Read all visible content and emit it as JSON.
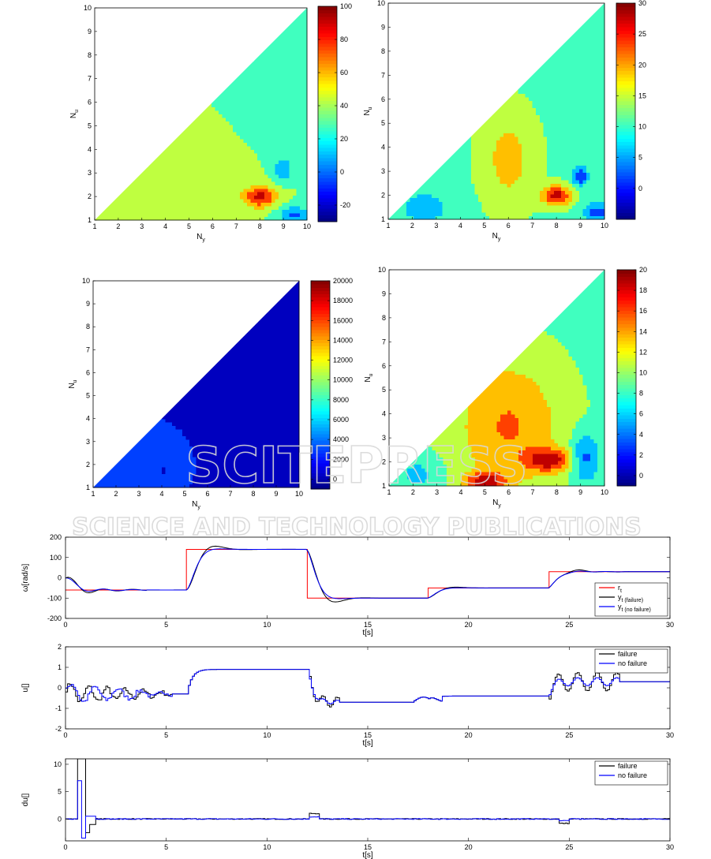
{
  "watermark": {
    "line1": "SCITEPRESS",
    "line2": "SCIENCE AND TECHNOLOGY PUBLICATIONS"
  },
  "chart_data": [
    {
      "type": "heatmap",
      "xlabel": "N_y",
      "ylabel": "N_u",
      "xlim": [
        1,
        10
      ],
      "ylim": [
        1,
        10
      ],
      "xticks": [
        1,
        2,
        3,
        4,
        5,
        6,
        7,
        8,
        9,
        10
      ],
      "yticks": [
        1,
        2,
        3,
        4,
        5,
        6,
        7,
        8,
        9,
        10
      ],
      "colorbar": {
        "min": -30,
        "max": 100,
        "ticks": [
          -20,
          0,
          20,
          40,
          60,
          80,
          100
        ]
      },
      "region": "Nu<=Ny",
      "base_value": 35,
      "blobs": [
        {
          "x": 4.5,
          "y": 3.5,
          "sx": 2.4,
          "sy": 2.0,
          "a": 12
        },
        {
          "x": 8.0,
          "y": 2.0,
          "sx": 0.7,
          "sy": 0.45,
          "a": 55
        },
        {
          "x": 9.0,
          "y": 3.2,
          "sx": 0.4,
          "sy": 0.5,
          "a": -30
        },
        {
          "x": 9.5,
          "y": 1.2,
          "sx": 0.7,
          "sy": 0.4,
          "a": -35
        },
        {
          "x": 8.5,
          "y": 7.0,
          "sx": 2.2,
          "sy": 2.5,
          "a": -10
        }
      ]
    },
    {
      "type": "heatmap",
      "xlabel": "N_y",
      "ylabel": "N_u",
      "xlim": [
        1,
        10
      ],
      "ylim": [
        1,
        10
      ],
      "xticks": [
        1,
        2,
        3,
        4,
        5,
        6,
        7,
        8,
        9,
        10
      ],
      "yticks": [
        1,
        2,
        3,
        4,
        5,
        6,
        7,
        8,
        9,
        10
      ],
      "colorbar": {
        "min": -5,
        "max": 30,
        "ticks": [
          0,
          5,
          10,
          15,
          20,
          25,
          30
        ]
      },
      "region": "Nu<=Ny",
      "base_value": 12,
      "blobs": [
        {
          "x": 6.0,
          "y": 3.5,
          "sx": 1.0,
          "sy": 1.8,
          "a": 7
        },
        {
          "x": 8.0,
          "y": 2.0,
          "sx": 0.6,
          "sy": 0.4,
          "a": 16
        },
        {
          "x": 9.0,
          "y": 2.8,
          "sx": 0.35,
          "sy": 0.4,
          "a": -12
        },
        {
          "x": 2.5,
          "y": 1.5,
          "sx": 1.2,
          "sy": 0.8,
          "a": -6
        },
        {
          "x": 9.7,
          "y": 1.3,
          "sx": 0.6,
          "sy": 0.5,
          "a": -10
        }
      ]
    },
    {
      "type": "heatmap",
      "xlabel": "N_y",
      "ylabel": "N_u",
      "xlim": [
        1,
        10
      ],
      "ylim": [
        1,
        10
      ],
      "xticks": [
        1,
        2,
        3,
        4,
        5,
        6,
        7,
        8,
        9,
        10
      ],
      "yticks": [
        1,
        2,
        3,
        4,
        5,
        6,
        7,
        8,
        9,
        10
      ],
      "colorbar": {
        "min": -1000,
        "max": 20000,
        "ticks": [
          0,
          2000,
          4000,
          6000,
          8000,
          10000,
          12000,
          14000,
          16000,
          18000,
          20000
        ]
      },
      "region": "Nu<=Ny",
      "base_value": 1200,
      "blobs": [
        {
          "x": 3.0,
          "y": 2.0,
          "sx": 1.8,
          "sy": 1.6,
          "a": 2800
        },
        {
          "x": 4.0,
          "y": 1.8,
          "sx": 0.3,
          "sy": 0.35,
          "a": -1800
        },
        {
          "x": 9.0,
          "y": 5.0,
          "sx": 1.2,
          "sy": 4.0,
          "a": -1400
        }
      ]
    },
    {
      "type": "heatmap",
      "xlabel": "N_y",
      "ylabel": "N_u",
      "xlim": [
        1,
        10
      ],
      "ylim": [
        1,
        10
      ],
      "xticks": [
        1,
        2,
        3,
        4,
        5,
        6,
        7,
        8,
        9,
        10
      ],
      "yticks": [
        1,
        2,
        3,
        4,
        5,
        6,
        7,
        8,
        9,
        10
      ],
      "colorbar": {
        "min": -1,
        "max": 20,
        "ticks": [
          0,
          2,
          4,
          6,
          8,
          10,
          12,
          14,
          16,
          18,
          20
        ]
      },
      "region": "Nu<=Ny",
      "base_value": 9,
      "blobs": [
        {
          "x": 6.0,
          "y": 3.5,
          "sx": 2.2,
          "sy": 2.8,
          "a": 6
        },
        {
          "x": 7.7,
          "y": 2.1,
          "sx": 0.9,
          "sy": 0.45,
          "a": 9
        },
        {
          "x": 5.0,
          "y": 1.2,
          "sx": 0.8,
          "sy": 0.35,
          "a": 9
        },
        {
          "x": 9.2,
          "y": 2.2,
          "sx": 0.6,
          "sy": 1.0,
          "a": -6
        },
        {
          "x": 2.2,
          "y": 1.5,
          "sx": 0.9,
          "sy": 0.7,
          "a": -3
        }
      ]
    },
    {
      "type": "line",
      "xlabel": "t[s]",
      "ylabel": "ω[rad/s]",
      "xlim": [
        0,
        30
      ],
      "ylim": [
        -200,
        200
      ],
      "xticks": [
        0,
        5,
        10,
        15,
        20,
        25,
        30
      ],
      "yticks": [
        -200,
        -100,
        0,
        100,
        200
      ],
      "legend_position": "bottom-right",
      "reference": {
        "name": "r_t",
        "color": "#ff0000",
        "steps": [
          [
            0,
            -60
          ],
          [
            6,
            140
          ],
          [
            12,
            -100
          ],
          [
            18,
            -50
          ],
          [
            24,
            30
          ],
          [
            30,
            30
          ]
        ]
      },
      "series": [
        {
          "name": "y_t (failure)",
          "color": "#000000"
        },
        {
          "name": "y_t (no failure)",
          "color": "#0000ff"
        }
      ]
    },
    {
      "type": "line",
      "xlabel": "t[s]",
      "ylabel": "u[]",
      "xlim": [
        0,
        30
      ],
      "ylim": [
        -2,
        2
      ],
      "xticks": [
        0,
        5,
        10,
        15,
        20,
        25,
        30
      ],
      "yticks": [
        -2,
        -1,
        0,
        1,
        2
      ],
      "legend_position": "top-right",
      "levels": [
        [
          0,
          -0.3
        ],
        [
          6,
          0.9
        ],
        [
          12,
          -0.7
        ],
        [
          18,
          -0.4
        ],
        [
          24,
          0.3
        ],
        [
          30,
          0.3
        ]
      ],
      "series": [
        {
          "name": "failure",
          "color": "#000000"
        },
        {
          "name": "no failure",
          "color": "#0000ff"
        }
      ]
    },
    {
      "type": "line",
      "xlabel": "t[s]",
      "ylabel": "du[]",
      "xlim": [
        0,
        30
      ],
      "ylim": [
        -4,
        11
      ],
      "xticks": [
        0,
        5,
        10,
        15,
        20,
        25,
        30
      ],
      "yticks": [
        0,
        5,
        10
      ],
      "legend_position": "top-right",
      "series": [
        {
          "name": "failure",
          "color": "#000000"
        },
        {
          "name": "no failure",
          "color": "#0000ff"
        }
      ]
    }
  ]
}
